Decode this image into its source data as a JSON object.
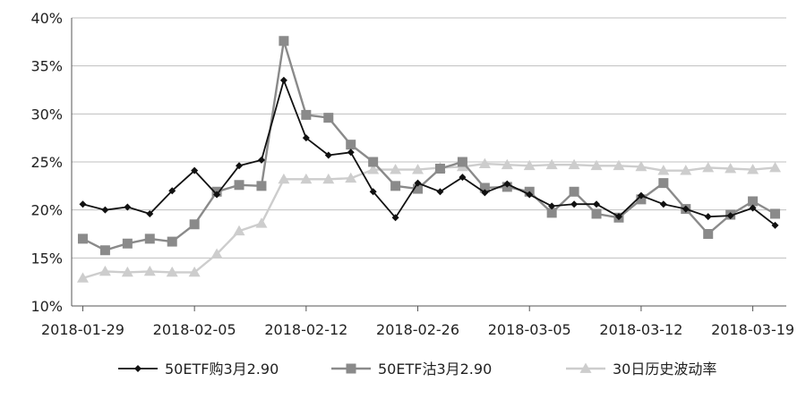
{
  "chart_data": {
    "type": "line",
    "title": "",
    "xlabel": "",
    "ylabel": "",
    "ylim": [
      10,
      40
    ],
    "y_tick_values": [
      10,
      15,
      20,
      25,
      30,
      35,
      40
    ],
    "y_tick_labels": [
      "10%",
      "15%",
      "20%",
      "25%",
      "30%",
      "35%",
      "40%"
    ],
    "x_tick_labels": [
      "2018-01-29",
      "2018-02-05",
      "2018-02-12",
      "2018-02-26",
      "2018-03-05",
      "2018-03-12",
      "2018-03-19"
    ],
    "x_tick_indices": [
      0,
      5,
      10,
      15,
      20,
      25,
      30
    ],
    "grid": "horizontal",
    "legend_position": "bottom",
    "series": [
      {
        "name": "50ETF购3月2.90",
        "color": "#111111",
        "marker": "diamond",
        "values": [
          20.6,
          20.0,
          20.3,
          19.6,
          22.0,
          24.1,
          21.6,
          24.6,
          25.2,
          33.5,
          27.5,
          25.7,
          26.0,
          21.9,
          19.2,
          22.8,
          21.9,
          23.4,
          21.8,
          22.7,
          21.6,
          20.4,
          20.6,
          20.6,
          19.3,
          21.5,
          20.6,
          20.1,
          19.3,
          19.4,
          20.2,
          18.4
        ]
      },
      {
        "name": "50ETF沽3月2.90",
        "color": "#8a8a8a",
        "marker": "square",
        "values": [
          17.0,
          15.8,
          16.5,
          17.0,
          16.7,
          18.5,
          21.9,
          22.6,
          22.5,
          37.6,
          29.9,
          29.6,
          26.8,
          25.0,
          22.5,
          22.2,
          24.3,
          25.0,
          22.3,
          22.4,
          21.9,
          19.7,
          21.9,
          19.6,
          19.2,
          21.1,
          22.8,
          20.1,
          17.5,
          19.5,
          20.9,
          19.6
        ]
      },
      {
        "name": "30日历史波动率",
        "color": "#cdcdcd",
        "marker": "triangle",
        "values": [
          12.9,
          13.6,
          13.5,
          13.6,
          13.5,
          13.5,
          15.4,
          17.8,
          18.6,
          23.2,
          23.2,
          23.2,
          23.3,
          24.2,
          24.2,
          24.2,
          24.4,
          24.5,
          24.8,
          24.7,
          24.6,
          24.7,
          24.7,
          24.6,
          24.6,
          24.5,
          24.1,
          24.1,
          24.4,
          24.3,
          24.2,
          24.4
        ]
      }
    ]
  }
}
